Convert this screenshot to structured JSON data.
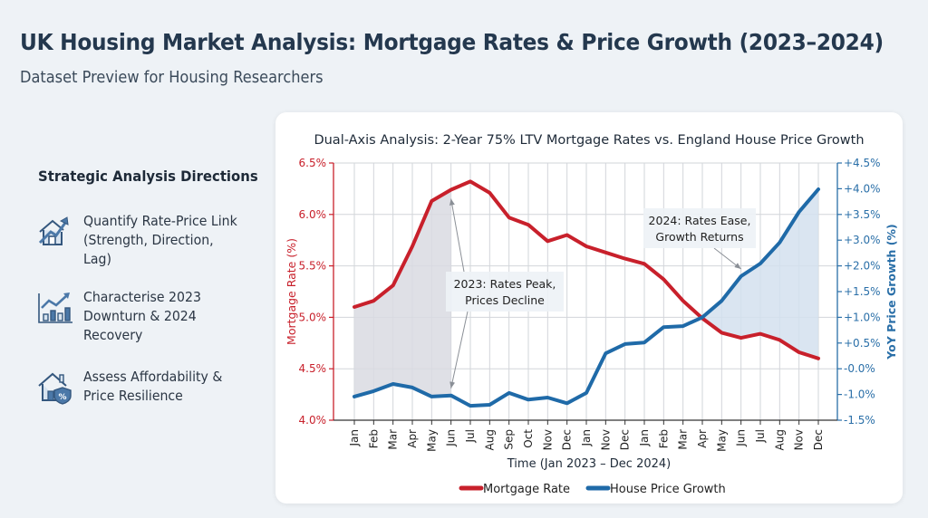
{
  "header": {
    "title": "UK Housing Market Analysis: Mortgage Rates & Price Growth (2023–2024)",
    "subtitle": "Dataset Preview for Housing Researchers"
  },
  "sidebar": {
    "heading": "Strategic Analysis Directions",
    "items": [
      {
        "icon": "house-growth-arrow-icon",
        "label": "Quantify Rate-Price Link (Strength, Direction, Lag)"
      },
      {
        "icon": "bar-chart-trend-icon",
        "label": "Characterise 2023 Downturn & 2024 Recovery"
      },
      {
        "icon": "house-percent-shield-icon",
        "label": "Assess Affordability & Price Resilience"
      }
    ]
  },
  "colors": {
    "mortgage": "#c8202b",
    "growth": "#1f6aa8",
    "left_axis": "#c8202b",
    "right_axis": "#2a6fa8",
    "fill_2023": "#d9dae2",
    "fill_2024": "#d3e1ef"
  },
  "chart_data": {
    "type": "line",
    "title": "Dual-Axis Analysis: 2-Year 75% LTV Mortgage Rates vs. England House Price Growth",
    "xlabel": "Time (Jan 2023 – Dec 2024)",
    "ylabel_left": "Mortgage Rate (%)",
    "ylabel_right": "YoY Price Growth (%)",
    "categories": [
      "Jan",
      "Feb",
      "Mar",
      "Apr",
      "May",
      "Jun",
      "Jul",
      "Aug",
      "Sep",
      "Oct",
      "Nov",
      "Dec",
      "Jan",
      "Nov",
      "Dec",
      "Jan",
      "Feb",
      "Mar",
      "Apr",
      "May",
      "Jun",
      "Jul",
      "Aug",
      "Nov",
      "Dec"
    ],
    "left_axis": {
      "ylim": [
        4.0,
        6.5
      ],
      "ticks": [
        "4.0%",
        "4.5%",
        "5.0%",
        "5.5%",
        "6.0%",
        "6.5%"
      ],
      "tick_values": [
        4.0,
        4.5,
        5.0,
        5.5,
        6.0,
        6.5
      ]
    },
    "right_axis": {
      "ticks": [
        "+4.5%",
        "+4.0%",
        "+3.5%",
        "+3.0%",
        "+2.0%",
        "+1.5%",
        "+1.0%",
        "+0.5%",
        "-0.0%",
        "-1.0%",
        "-1.5%"
      ],
      "tick_values": [
        4.5,
        4.0,
        3.5,
        3.0,
        2.0,
        1.5,
        1.0,
        0.5,
        0.0,
        -1.0,
        -1.5
      ]
    },
    "grid": true,
    "series": [
      {
        "name": "Mortgage Rate",
        "axis": "left",
        "values": [
          5.1,
          5.16,
          5.31,
          5.69,
          6.13,
          6.24,
          6.32,
          6.21,
          5.97,
          5.9,
          5.74,
          5.8,
          5.69,
          5.63,
          5.57,
          5.52,
          5.37,
          5.16,
          4.99,
          4.85,
          4.8,
          4.84,
          4.78,
          4.66,
          4.6
        ]
      },
      {
        "name": "House Price Growth",
        "axis": "right",
        "values": [
          -1.04,
          -0.87,
          -0.59,
          -0.73,
          -1.04,
          -1.02,
          -1.22,
          -1.2,
          -0.94,
          -1.1,
          -1.06,
          -1.17,
          -0.94,
          0.3,
          0.48,
          0.51,
          0.81,
          0.83,
          1.0,
          1.32,
          1.8,
          2.09,
          2.91,
          3.55,
          3.99
        ]
      }
    ],
    "shaded_regions": [
      {
        "name": "2023-gap",
        "from_index": 0,
        "to_index": 5
      },
      {
        "name": "2024-gap",
        "from_index": 18,
        "to_index": 24
      }
    ],
    "annotations": [
      {
        "text": [
          "2023: Rates Peak,",
          "Prices Decline"
        ],
        "arrows_to": [
          {
            "series": 0,
            "index": 5
          },
          {
            "series": 1,
            "index": 5
          }
        ]
      },
      {
        "text": [
          "2024: Rates Ease,",
          "Growth Returns"
        ],
        "arrows_to": [
          {
            "series": 1,
            "index": 20
          }
        ]
      }
    ],
    "legend": {
      "position": "bottom",
      "entries": [
        "Mortgage Rate",
        "House Price Growth"
      ]
    }
  }
}
